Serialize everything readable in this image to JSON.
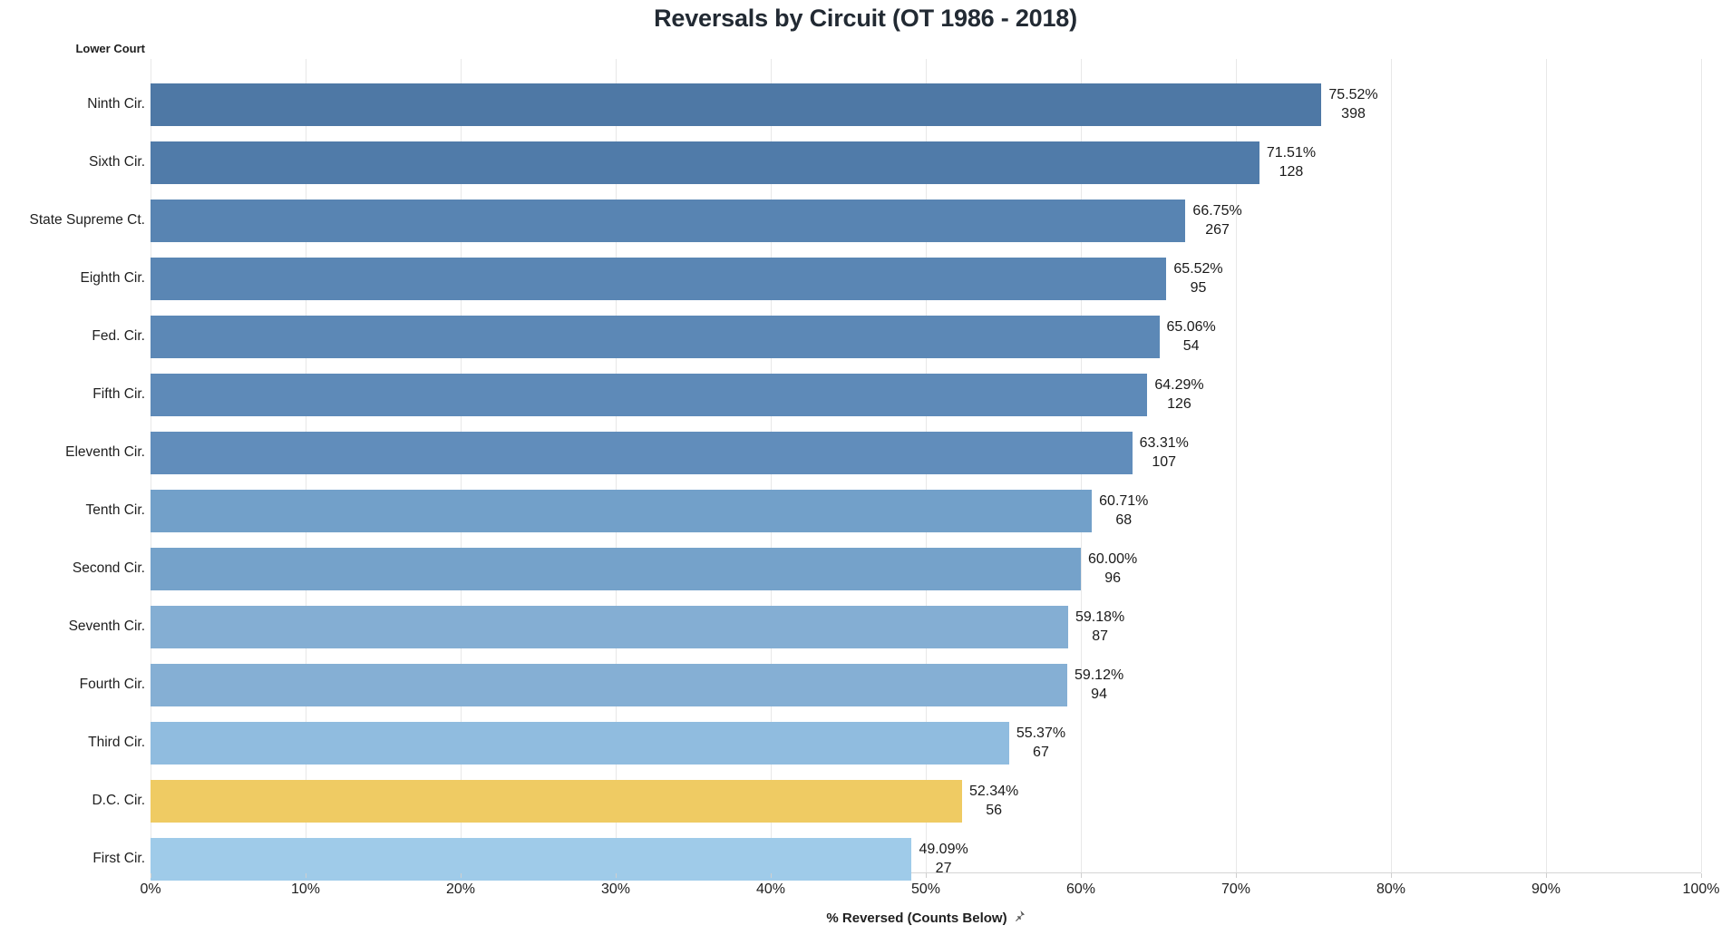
{
  "title": "Reversals by Circuit (OT 1986 - 2018)",
  "row_header": "Lower Court",
  "axis": {
    "caption": "% Reversed (Counts Below)",
    "pin_icon": "pushpin-icon",
    "ticks": [
      "0%",
      "10%",
      "20%",
      "30%",
      "40%",
      "50%",
      "60%",
      "70%",
      "80%",
      "90%",
      "100%"
    ]
  },
  "colors": {
    "grid": "#e8e8e8",
    "axis_line": "#d4d4d4",
    "text": "#1f1f1f",
    "pin": "#595959",
    "highlight": "#EFCB63"
  },
  "chart_data": {
    "type": "bar",
    "orientation": "horizontal",
    "title": "Reversals by Circuit (OT 1986 - 2018)",
    "xlabel": "% Reversed (Counts Below)",
    "ylabel": "Lower Court",
    "xlim": [
      0,
      100
    ],
    "x_tick_labels": [
      "0%",
      "10%",
      "20%",
      "30%",
      "40%",
      "50%",
      "60%",
      "70%",
      "80%",
      "90%",
      "100%"
    ],
    "grid": true,
    "legend": false,
    "categories": [
      "Ninth Cir.",
      "Sixth Cir.",
      "State Supreme Ct.",
      "Eighth Cir.",
      "Fed. Cir.",
      "Fifth Cir.",
      "Eleventh Cir.",
      "Tenth Cir.",
      "Second Cir.",
      "Seventh Cir.",
      "Fourth Cir.",
      "Third Cir.",
      "D.C. Cir.",
      "First Cir."
    ],
    "series": [
      {
        "name": "% Reversed",
        "values": [
          75.52,
          71.51,
          66.75,
          65.52,
          65.06,
          64.29,
          63.31,
          60.71,
          60.0,
          59.18,
          59.12,
          55.37,
          52.34,
          49.09
        ]
      },
      {
        "name": "Counts",
        "values": [
          398,
          128,
          267,
          95,
          54,
          126,
          107,
          68,
          96,
          87,
          94,
          67,
          56,
          27
        ]
      }
    ],
    "bars": [
      {
        "label": "Ninth Cir.",
        "pct": 75.52,
        "pct_label": "75.52%",
        "count": "398",
        "color": "#4E78A5"
      },
      {
        "label": "Sixth Cir.",
        "pct": 71.51,
        "pct_label": "71.51%",
        "count": "128",
        "color": "#507BA9"
      },
      {
        "label": "State Supreme Ct.",
        "pct": 66.75,
        "pct_label": "66.75%",
        "count": "267",
        "color": "#5884B2"
      },
      {
        "label": "Eighth Cir.",
        "pct": 65.52,
        "pct_label": "65.52%",
        "count": "95",
        "color": "#5A86B4"
      },
      {
        "label": "Fed. Cir.",
        "pct": 65.06,
        "pct_label": "65.06%",
        "count": "54",
        "color": "#5C88B6"
      },
      {
        "label": "Fifth Cir.",
        "pct": 64.29,
        "pct_label": "64.29%",
        "count": "126",
        "color": "#5E8AB8"
      },
      {
        "label": "Eleventh Cir.",
        "pct": 63.31,
        "pct_label": "63.31%",
        "count": "107",
        "color": "#618DBB"
      },
      {
        "label": "Tenth Cir.",
        "pct": 60.71,
        "pct_label": "60.71%",
        "count": "68",
        "color": "#72A0C9"
      },
      {
        "label": "Second Cir.",
        "pct": 60.0,
        "pct_label": "60.00%",
        "count": "96",
        "color": "#75A2CA"
      },
      {
        "label": "Seventh Cir.",
        "pct": 59.18,
        "pct_label": "59.18%",
        "count": "87",
        "color": "#84AED3"
      },
      {
        "label": "Fourth Cir.",
        "pct": 59.12,
        "pct_label": "59.12%",
        "count": "94",
        "color": "#85AFD4"
      },
      {
        "label": "Third Cir.",
        "pct": 55.37,
        "pct_label": "55.37%",
        "count": "67",
        "color": "#90BCDF"
      },
      {
        "label": "D.C. Cir.",
        "pct": 52.34,
        "pct_label": "52.34%",
        "count": "56",
        "color": "#EFCB63"
      },
      {
        "label": "First Cir.",
        "pct": 49.09,
        "pct_label": "49.09%",
        "count": "27",
        "color": "#9FCBE9"
      }
    ]
  }
}
